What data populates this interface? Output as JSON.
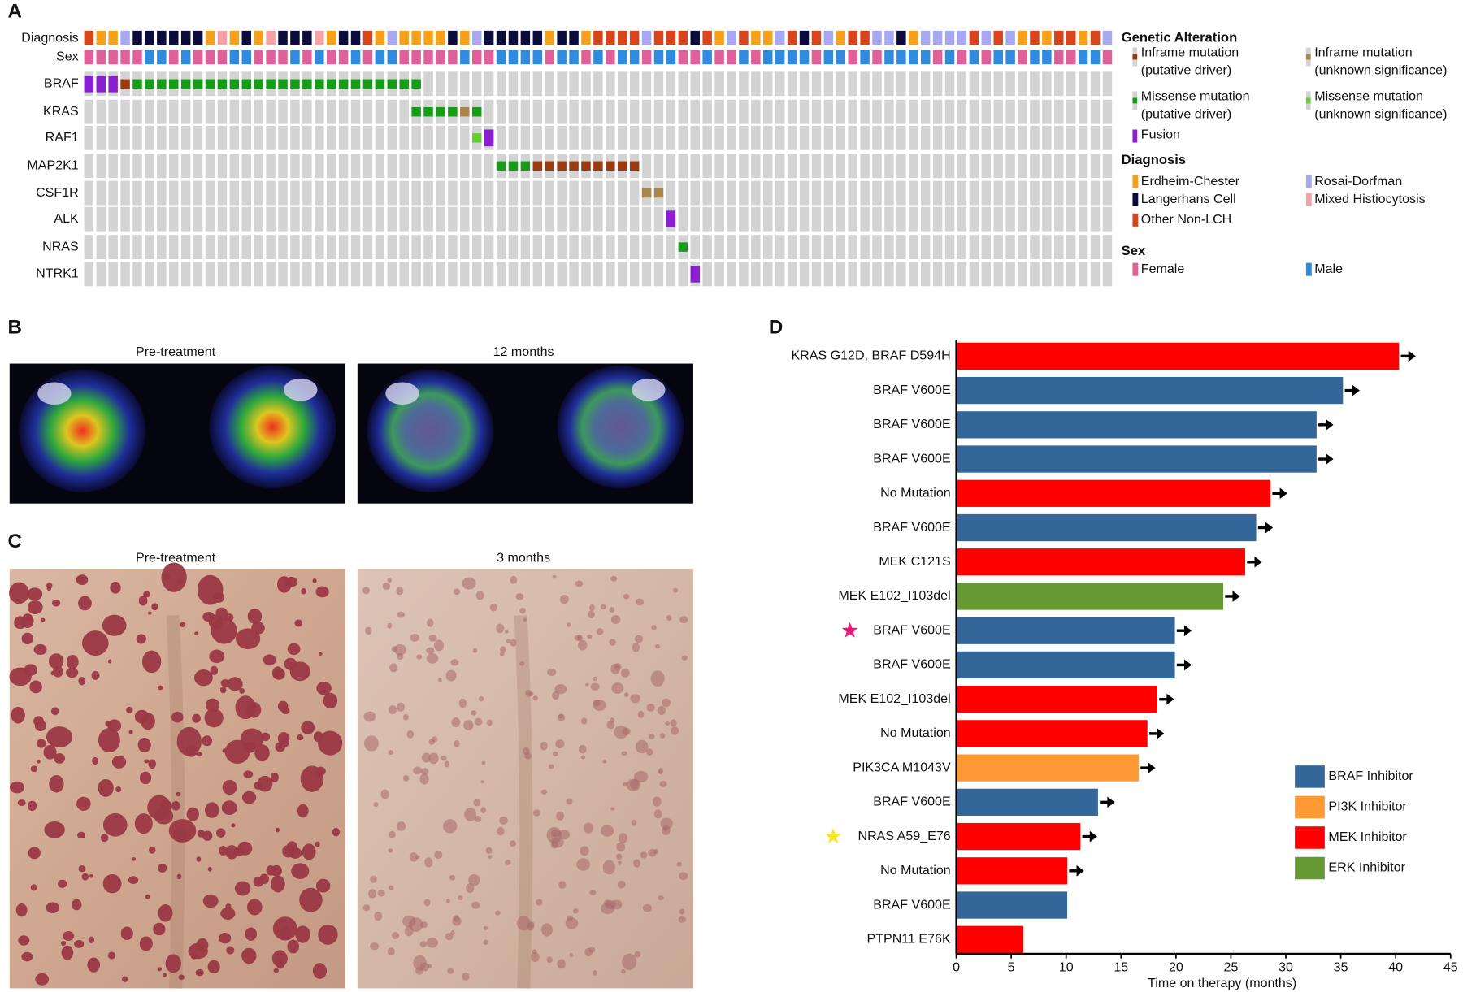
{
  "panel_labels": [
    "A",
    "B",
    "C",
    "D"
  ],
  "oncoprint": {
    "track_labels": [
      "Diagnosis",
      "Sex"
    ],
    "genes": [
      "BRAF",
      "KRAS",
      "RAF1",
      "MAP2K1",
      "CSF1R",
      "ALK",
      "NRAS",
      "NTRK1"
    ],
    "legend": {
      "alteration_title": "Genetic Alteration",
      "alterations": [
        [
          "Inframe mutation",
          "(putative driver)"
        ],
        [
          "Inframe mutation",
          "(unknown significance)"
        ],
        [
          "Missense mutation",
          "(putative driver)"
        ],
        [
          "Missense mutation",
          "(unknown significance)"
        ],
        [
          "Fusion"
        ]
      ],
      "diagnosis_title": "Diagnosis",
      "diagnoses": [
        "Erdheim-Chester",
        "Rosai-Dorfman",
        "Langerhans Cell",
        "Mixed Histiocytosis",
        "Other Non-LCH"
      ],
      "sex_title": "Sex",
      "sexes": [
        "Female",
        "Male"
      ]
    }
  },
  "panel_b": {
    "titles": [
      "Pre-treatment",
      "12 months"
    ]
  },
  "panel_c": {
    "titles": [
      "Pre-treatment",
      "3 months"
    ]
  },
  "chart_data": {
    "type": "hbar",
    "x_label": "Time on therapy (months)",
    "categories": [
      "KRAS G12D, BRAF D594H",
      "BRAF V600E",
      "BRAF V600E",
      "BRAF V600E",
      "No Mutation",
      "BRAF V600E",
      "MEK C121S",
      "MEK E102_I103del",
      "BRAF V600E",
      "BRAF V600E",
      "MEK E102_I103del",
      "No Mutation",
      "PIK3CA M1043V",
      "BRAF V600E",
      "NRAS A59_E76",
      "No Mutation",
      "BRAF V600E",
      "PTPN11 E76K"
    ],
    "values": [
      40.3,
      35.2,
      32.8,
      32.8,
      28.6,
      27.3,
      26.3,
      24.3,
      19.9,
      19.9,
      18.3,
      17.4,
      16.6,
      12.9,
      11.3,
      10.1,
      10.1,
      6.1
    ],
    "colors": [
      "#ff0000",
      "#336699",
      "#336699",
      "#336699",
      "#ff0000",
      "#336699",
      "#ff0000",
      "#669933",
      "#336699",
      "#336699",
      "#ff0000",
      "#ff0000",
      "#ff9933",
      "#336699",
      "#ff0000",
      "#ff0000",
      "#336699",
      "#ff0000"
    ],
    "ongoing": [
      true,
      true,
      true,
      true,
      true,
      true,
      true,
      true,
      true,
      true,
      true,
      true,
      true,
      true,
      true,
      true,
      false,
      false
    ],
    "xlim": [
      0,
      45
    ],
    "xticks": [
      0,
      5,
      10,
      15,
      20,
      25,
      30,
      35,
      40,
      45
    ],
    "legend": [
      {
        "name": "BRAF Inhibitor",
        "color": "#336699"
      },
      {
        "name": "PI3K Inhibitor",
        "color": "#ff9933"
      },
      {
        "name": "MEK Inhibitor",
        "color": "#ff0000"
      },
      {
        "name": "ERK Inhibitor",
        "color": "#669933"
      }
    ]
  }
}
